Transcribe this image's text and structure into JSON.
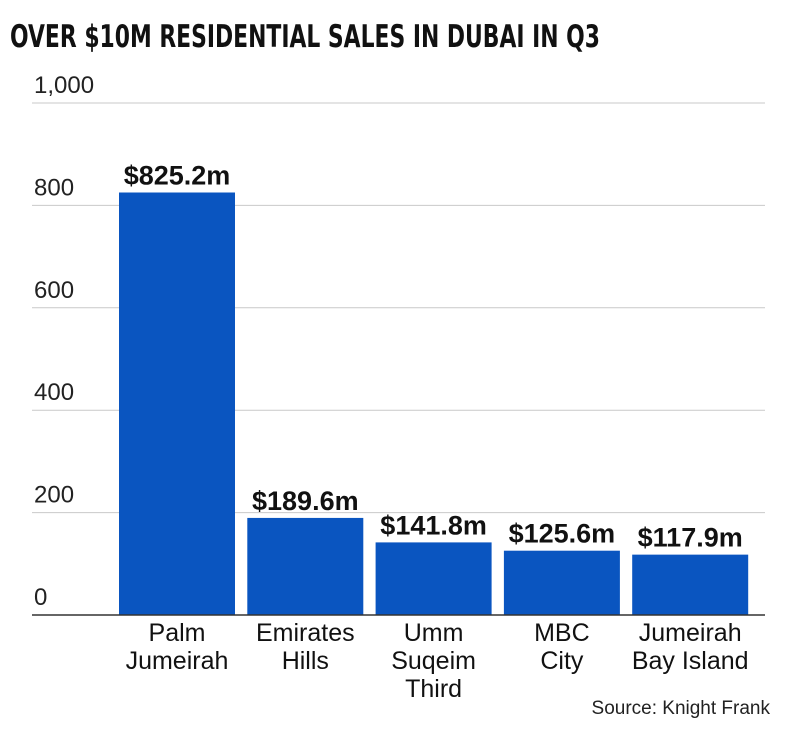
{
  "chart_data": {
    "type": "bar",
    "title": "OVER $10M RESIDENTIAL SALES IN DUBAI IN Q3",
    "categories": [
      "Palm Jumeirah",
      "Emirates Hills",
      "Umm Suqeim Third",
      "MBC City",
      "Jumeirah Bay Island"
    ],
    "category_lines": [
      [
        "Palm",
        "Jumeirah"
      ],
      [
        "Emirates",
        "Hills"
      ],
      [
        "Umm",
        "Suqeim",
        "Third"
      ],
      [
        "MBC",
        "City"
      ],
      [
        "Jumeirah",
        "Bay Island"
      ]
    ],
    "values": [
      825.2,
      189.6,
      141.8,
      125.6,
      117.9
    ],
    "value_labels": [
      "$825.2m",
      "$189.6m",
      "$141.8m",
      "$125.6m",
      "$117.9m"
    ],
    "ylim": [
      0,
      1000
    ],
    "yticks": [
      0,
      200,
      400,
      600,
      800,
      1000
    ],
    "ytick_labels": [
      "0",
      "200",
      "400",
      "600",
      "800",
      "1,000"
    ],
    "grid": true,
    "xlabel": "",
    "ylabel": "",
    "source": "Source: Knight Frank",
    "colors": {
      "bar": "#0a55c0",
      "grid": "#c9c9c9",
      "axis": "#333333",
      "text": "#111111"
    }
  }
}
